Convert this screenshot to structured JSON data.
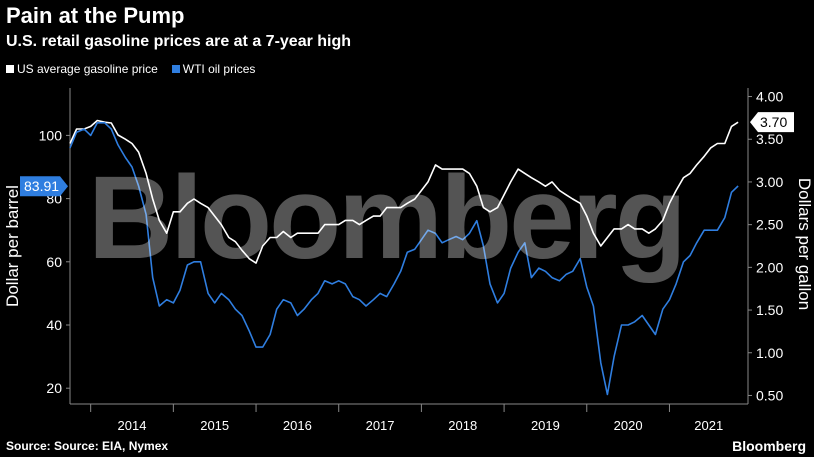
{
  "title": "Pain at the Pump",
  "subtitle": "U.S. retail gasoline prices are at a 7-year high",
  "source": "Source: Source: EIA, Nymex",
  "brand": "Bloomberg",
  "watermark": "Bloomberg",
  "colors": {
    "gas": "#ffffff",
    "wti": "#2f7ee0",
    "background": "#000000",
    "label_box": "#2f7ee0"
  },
  "chart_data": {
    "type": "line",
    "ylabel_left": "Dollar per barrel",
    "ylabel_right": "Dollars per gallon",
    "ylim_left": [
      15,
      115
    ],
    "ylim_right": [
      0.4,
      4.1
    ],
    "left_ticks": [
      20,
      40,
      60,
      80,
      100
    ],
    "right_ticks": [
      "0.50",
      "1.00",
      "1.50",
      "2.00",
      "2.50",
      "3.00",
      "3.50",
      "4.00"
    ],
    "x_tick_labels": [
      "2014",
      "2015",
      "2016",
      "2017",
      "2018",
      "2019",
      "2020",
      "2021"
    ],
    "x_range": [
      2013.75,
      2021.95
    ],
    "legend_position": "top-left",
    "series": [
      {
        "name": "US average gasoline price",
        "axis": "right",
        "last_label": "3.70",
        "x": [
          2013.75,
          2013.83,
          2013.92,
          2014.0,
          2014.08,
          2014.17,
          2014.25,
          2014.33,
          2014.42,
          2014.5,
          2014.58,
          2014.67,
          2014.75,
          2014.83,
          2014.92,
          2015.0,
          2015.08,
          2015.17,
          2015.25,
          2015.33,
          2015.42,
          2015.5,
          2015.58,
          2015.67,
          2015.75,
          2015.83,
          2015.92,
          2016.0,
          2016.08,
          2016.17,
          2016.25,
          2016.33,
          2016.42,
          2016.5,
          2016.58,
          2016.67,
          2016.75,
          2016.83,
          2016.92,
          2017.0,
          2017.08,
          2017.17,
          2017.25,
          2017.33,
          2017.42,
          2017.5,
          2017.58,
          2017.67,
          2017.75,
          2017.83,
          2017.92,
          2018.0,
          2018.08,
          2018.17,
          2018.25,
          2018.33,
          2018.42,
          2018.5,
          2018.58,
          2018.67,
          2018.75,
          2018.83,
          2018.92,
          2019.0,
          2019.08,
          2019.17,
          2019.25,
          2019.33,
          2019.42,
          2019.5,
          2019.58,
          2019.67,
          2019.75,
          2019.83,
          2019.92,
          2020.0,
          2020.08,
          2020.17,
          2020.25,
          2020.33,
          2020.42,
          2020.5,
          2020.58,
          2020.67,
          2020.75,
          2020.83,
          2020.92,
          2021.0,
          2021.08,
          2021.17,
          2021.25,
          2021.33,
          2021.42,
          2021.5,
          2021.58,
          2021.67,
          2021.75,
          2021.83
        ],
        "values": [
          3.45,
          3.62,
          3.62,
          3.65,
          3.72,
          3.7,
          3.69,
          3.55,
          3.5,
          3.45,
          3.35,
          3.1,
          2.8,
          2.55,
          2.4,
          2.65,
          2.65,
          2.75,
          2.8,
          2.75,
          2.7,
          2.6,
          2.5,
          2.35,
          2.3,
          2.2,
          2.1,
          2.05,
          2.25,
          2.35,
          2.35,
          2.42,
          2.35,
          2.4,
          2.4,
          2.4,
          2.4,
          2.5,
          2.5,
          2.5,
          2.55,
          2.55,
          2.5,
          2.55,
          2.6,
          2.6,
          2.7,
          2.7,
          2.7,
          2.75,
          2.8,
          2.9,
          3.0,
          3.2,
          3.15,
          3.15,
          3.15,
          3.15,
          3.1,
          2.95,
          2.7,
          2.65,
          2.7,
          2.85,
          3.0,
          3.15,
          3.1,
          3.05,
          3.0,
          2.95,
          3.0,
          2.9,
          2.85,
          2.8,
          2.75,
          2.6,
          2.4,
          2.25,
          2.35,
          2.45,
          2.45,
          2.5,
          2.45,
          2.45,
          2.4,
          2.45,
          2.55,
          2.75,
          2.9,
          3.05,
          3.1,
          3.2,
          3.3,
          3.4,
          3.45,
          3.45,
          3.65,
          3.7
        ]
      },
      {
        "name": "WTI oil prices",
        "axis": "left",
        "last_label": "83.91",
        "x": [
          2013.75,
          2013.83,
          2013.92,
          2014.0,
          2014.08,
          2014.17,
          2014.25,
          2014.33,
          2014.42,
          2014.5,
          2014.58,
          2014.67,
          2014.75,
          2014.83,
          2014.92,
          2015.0,
          2015.08,
          2015.17,
          2015.25,
          2015.33,
          2015.42,
          2015.5,
          2015.58,
          2015.67,
          2015.75,
          2015.83,
          2015.92,
          2016.0,
          2016.08,
          2016.17,
          2016.25,
          2016.33,
          2016.42,
          2016.5,
          2016.58,
          2016.67,
          2016.75,
          2016.83,
          2016.92,
          2017.0,
          2017.08,
          2017.17,
          2017.25,
          2017.33,
          2017.42,
          2017.5,
          2017.58,
          2017.67,
          2017.75,
          2017.83,
          2017.92,
          2018.0,
          2018.08,
          2018.17,
          2018.25,
          2018.33,
          2018.42,
          2018.5,
          2018.58,
          2018.67,
          2018.75,
          2018.83,
          2018.92,
          2019.0,
          2019.08,
          2019.17,
          2019.25,
          2019.33,
          2019.42,
          2019.5,
          2019.58,
          2019.67,
          2019.75,
          2019.83,
          2019.92,
          2020.0,
          2020.08,
          2020.17,
          2020.25,
          2020.33,
          2020.42,
          2020.5,
          2020.58,
          2020.67,
          2020.75,
          2020.83,
          2020.92,
          2021.0,
          2021.08,
          2021.17,
          2021.25,
          2021.33,
          2021.42,
          2021.5,
          2021.58,
          2021.67,
          2021.75,
          2021.83
        ],
        "values": [
          96,
          101,
          102,
          100,
          104,
          104,
          102,
          97,
          93,
          90,
          84,
          75,
          55,
          46,
          48,
          47,
          51,
          59,
          60,
          60,
          50,
          47,
          50,
          48,
          45,
          43,
          38,
          33,
          33,
          37,
          45,
          48,
          47,
          43,
          45,
          48,
          50,
          54,
          53,
          54,
          53,
          49,
          48,
          46,
          48,
          50,
          49,
          53,
          57,
          63,
          64,
          67,
          70,
          69,
          66,
          67,
          68,
          67,
          69,
          73,
          65,
          53,
          47,
          50,
          58,
          63,
          66,
          55,
          58,
          57,
          55,
          54,
          56,
          57,
          61,
          52,
          46,
          28,
          18,
          30,
          40,
          40,
          41,
          43,
          40,
          37,
          45,
          48,
          53,
          60,
          62,
          66,
          70,
          70,
          70,
          74,
          82,
          84
        ]
      }
    ]
  }
}
